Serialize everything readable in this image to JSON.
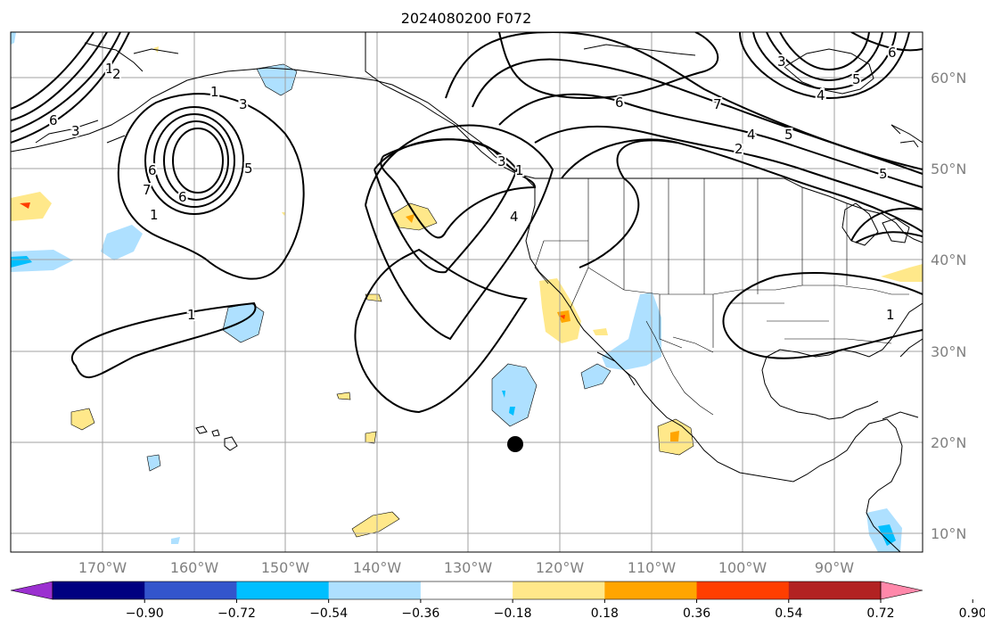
{
  "title": "2024080200 F072",
  "map": {
    "lat_labels": [
      "60°N",
      "50°N",
      "40°N",
      "30°N",
      "20°N",
      "10°N"
    ],
    "lon_labels": [
      "170°W",
      "160°W",
      "150°W",
      "140°W",
      "130°W",
      "120°W",
      "110°W",
      "100°W",
      "90°W"
    ],
    "contour_labels": [
      "6",
      "3",
      "1",
      "1",
      "2",
      "3",
      "6",
      "5",
      "7",
      "6",
      "1",
      "1",
      "1",
      "4",
      "3",
      "6",
      "7",
      "4",
      "2",
      "5",
      "3",
      "4",
      "5",
      "6",
      "5",
      "1"
    ],
    "marker": "black-dot-marker"
  },
  "colorbar": {
    "colors": [
      "#9b30d0",
      "#000080",
      "#3355cc",
      "#00bfff",
      "#aee0ff",
      "#ffffff",
      "#ffe88a",
      "#ffa500",
      "#ff3e00",
      "#b22222",
      "#ff88aa"
    ],
    "tick_labels": [
      "−0.90",
      "−0.72",
      "−0.54",
      "−0.36",
      "−0.18",
      "0.18",
      "0.36",
      "0.54",
      "0.72",
      "0.90"
    ]
  }
}
